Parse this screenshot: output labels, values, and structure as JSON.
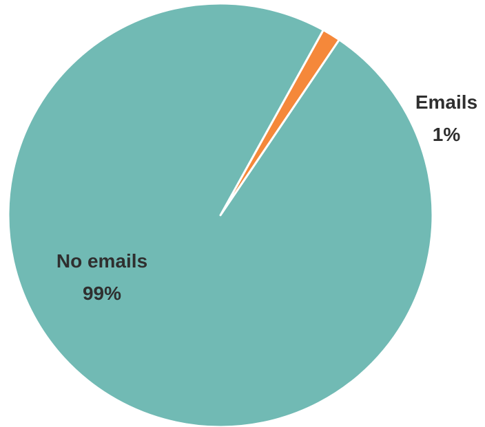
{
  "chart_data": {
    "type": "pie",
    "slices": [
      {
        "label": "Emails",
        "percent_label": "1%",
        "value": 1.4,
        "color": "#F5883A"
      },
      {
        "label": "No emails",
        "percent_label": "99%",
        "value": 98.6,
        "color": "#71BAB4"
      }
    ],
    "start_angle_deg": 61,
    "legend": "none"
  }
}
